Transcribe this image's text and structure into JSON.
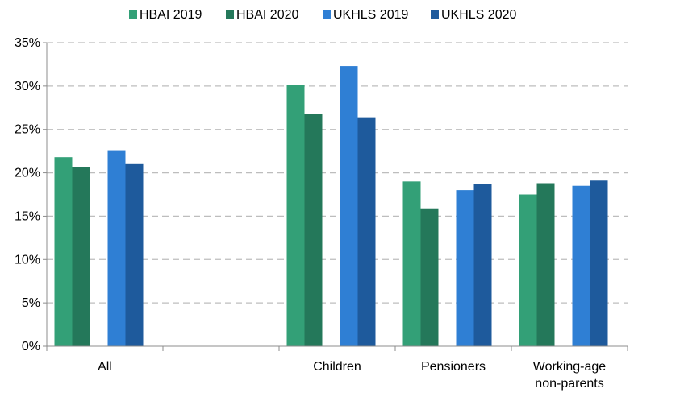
{
  "chart_data": {
    "type": "bar",
    "categories": [
      {
        "lines": [
          "All"
        ]
      },
      {
        "lines": [
          ""
        ]
      },
      {
        "lines": [
          "Children"
        ]
      },
      {
        "lines": [
          "Pensioners"
        ]
      },
      {
        "lines": [
          "Working-age",
          "non-parents"
        ]
      }
    ],
    "series": [
      {
        "name": "HBAI 2019",
        "color": "#33a077",
        "values": [
          21.8,
          null,
          30.1,
          19.0,
          17.5
        ]
      },
      {
        "name": "HBAI 2020",
        "color": "#24785a",
        "values": [
          20.7,
          null,
          26.8,
          15.9,
          18.8
        ]
      },
      {
        "name": "UKHLS 2019",
        "color": "#2f7fd4",
        "values": [
          22.6,
          null,
          32.3,
          18.0,
          18.5
        ]
      },
      {
        "name": "UKHLS 2020",
        "color": "#1e5a9c",
        "values": [
          21.0,
          null,
          26.4,
          18.7,
          19.1
        ]
      }
    ],
    "ylim": [
      0,
      35
    ],
    "yticks": [
      0,
      5,
      10,
      15,
      20,
      25,
      30,
      35
    ],
    "ytick_labels": [
      "0%",
      "5%",
      "10%",
      "15%",
      "20%",
      "25%",
      "30%",
      "35%"
    ],
    "grid": true,
    "legend_position": "top"
  }
}
